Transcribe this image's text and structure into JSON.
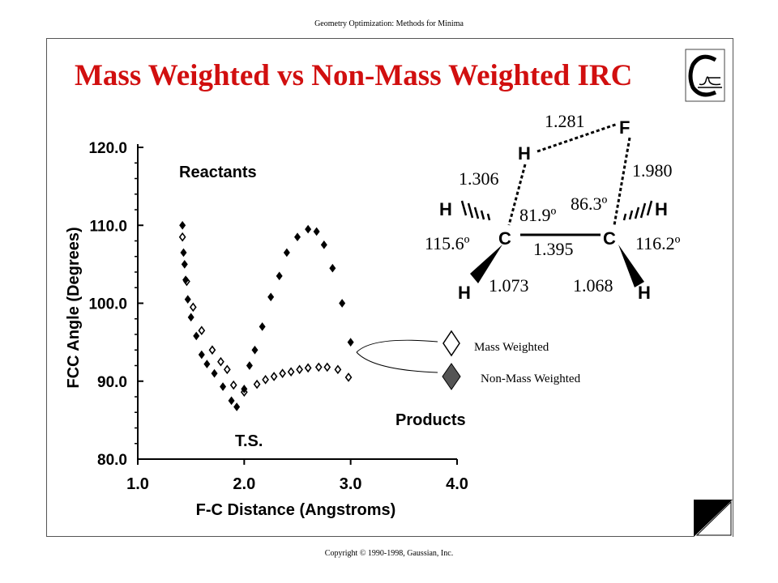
{
  "header": {
    "caption": "Geometry Optimization: Methods for Minima"
  },
  "slide": {
    "title": "Mass Weighted vs Non-Mass Weighted IRC",
    "title_color": "#d10f0f"
  },
  "footer": {
    "caption": "Copyright © 1990-1998, Gaussian, Inc."
  },
  "molecule": {
    "atoms": [
      "F",
      "H",
      "H",
      "C",
      "C",
      "H",
      "H",
      "H"
    ],
    "bond_lengths": [
      "1.281",
      "1.306",
      "1.980",
      "1.395",
      "1.073",
      "1.068"
    ],
    "angles": [
      "81.9º",
      "86.3º",
      "115.6º",
      "116.2º"
    ]
  },
  "legend": {
    "mass_weighted": "Mass Weighted",
    "non_mass_weighted": "Non-Mass Weighted"
  },
  "chart_data": {
    "type": "scatter",
    "title": "",
    "xlabel": "F-C Distance (Angstroms)",
    "ylabel": "FCC Angle (Degrees)",
    "xlim": [
      1.0,
      4.0
    ],
    "ylim": [
      80.0,
      120.0
    ],
    "x_ticks": [
      "1.0",
      "2.0",
      "3.0",
      "4.0"
    ],
    "y_ticks": [
      "80.0",
      "90.0",
      "100.0",
      "110.0",
      "120.0"
    ],
    "annotations": [
      "Reactants",
      "T.S.",
      "Products"
    ],
    "series": [
      {
        "name": "Mass Weighted",
        "marker": "diamond-open",
        "x": [
          1.42,
          1.46,
          1.52,
          1.6,
          1.7,
          1.78,
          1.84,
          1.9,
          2.0,
          2.12,
          2.2,
          2.28,
          2.36,
          2.44,
          2.52,
          2.6,
          2.7,
          2.78,
          2.88,
          2.98
        ],
        "y": [
          108.5,
          102.8,
          99.5,
          96.5,
          94.0,
          92.5,
          91.5,
          89.5,
          88.6,
          89.6,
          90.2,
          90.6,
          91.0,
          91.2,
          91.5,
          91.7,
          91.8,
          91.8,
          91.5,
          90.5
        ]
      },
      {
        "name": "Non-Mass Weighted",
        "marker": "diamond-filled",
        "x": [
          1.42,
          1.43,
          1.44,
          1.45,
          1.47,
          1.5,
          1.55,
          1.6,
          1.65,
          1.72,
          1.8,
          1.88,
          1.93,
          2.0,
          2.05,
          2.1,
          2.17,
          2.25,
          2.33,
          2.4,
          2.5,
          2.6,
          2.68,
          2.75,
          2.83,
          2.92,
          3.0
        ],
        "y": [
          110.0,
          106.5,
          105.0,
          103.0,
          100.5,
          98.2,
          95.8,
          93.4,
          92.2,
          91.0,
          89.3,
          87.5,
          86.7,
          89.0,
          92.0,
          94.0,
          97.0,
          100.8,
          103.5,
          106.5,
          108.5,
          109.5,
          109.2,
          107.5,
          104.5,
          100.0,
          95.0
        ]
      }
    ]
  }
}
